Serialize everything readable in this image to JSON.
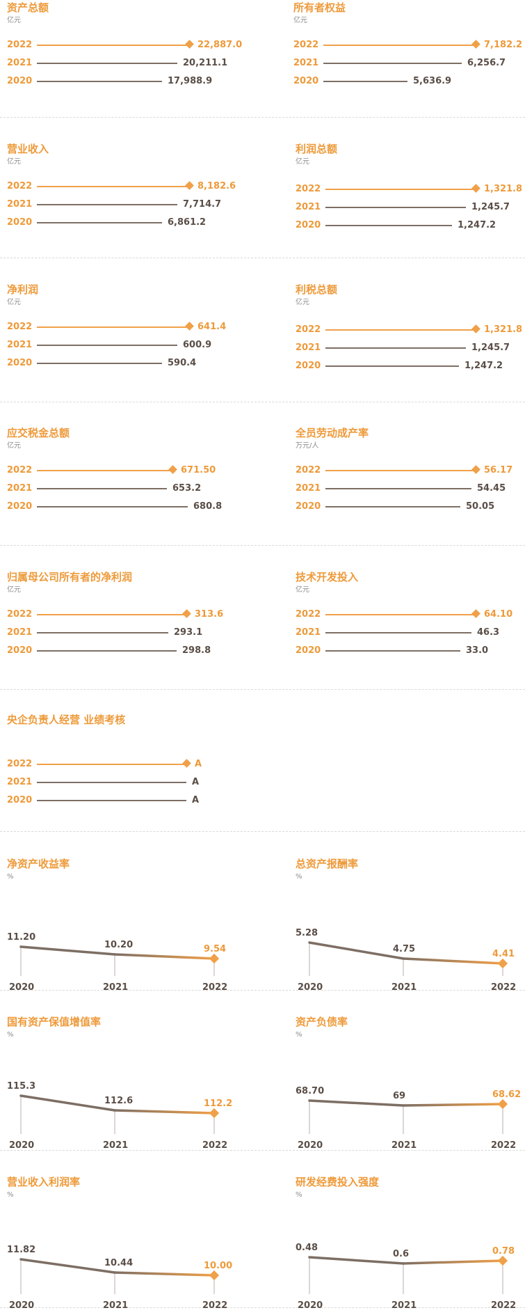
{
  "colors": {
    "accent": "#ee9a3a",
    "line_current": "#f0a048",
    "line_past": "#7d6e64",
    "value_text": "#5a4e47",
    "unit_text": "#8c8c8c"
  },
  "line_cards": [
    {
      "title": "资产总额",
      "unit": "亿元",
      "rows": [
        {
          "year": "2022",
          "value": 22887.0,
          "label": "22,887.0"
        },
        {
          "year": "2021",
          "value": 20211.1,
          "label": "20,211.1"
        },
        {
          "year": "2020",
          "value": 17988.9,
          "label": "17,988.9"
        }
      ]
    },
    {
      "title": "所有者权益",
      "unit": "亿元",
      "rows": [
        {
          "year": "2022",
          "value": 7182.2,
          "label": "7,182.2"
        },
        {
          "year": "2021",
          "value": 6256.7,
          "label": "6,256.7"
        },
        {
          "year": "2020",
          "value": 5636.9,
          "label": "5,636.9"
        }
      ]
    },
    {
      "title": "营业收入",
      "unit": "亿元",
      "rows": [
        {
          "year": "2022",
          "value": 8182.6,
          "label": "8,182.6"
        },
        {
          "year": "2021",
          "value": 7714.7,
          "label": "7,714.7"
        },
        {
          "year": "2020",
          "value": 6861.2,
          "label": "6,861.2"
        }
      ]
    },
    {
      "title": "利润总额",
      "unit": "亿元",
      "rows": [
        {
          "year": "2022",
          "value": 1321.8,
          "label": "1,321.8"
        },
        {
          "year": "2021",
          "value": 1245.7,
          "label": "1,245.7"
        },
        {
          "year": "2020",
          "value": 1247.2,
          "label": "1,247.2"
        }
      ]
    },
    {
      "title": "净利润",
      "unit": "亿元",
      "rows": [
        {
          "year": "2022",
          "value": 641.4,
          "label": "641.4"
        },
        {
          "year": "2021",
          "value": 600.9,
          "label": "600.9"
        },
        {
          "year": "2020",
          "value": 590.4,
          "label": "590.4"
        }
      ]
    },
    {
      "title": "利税总额",
      "unit": "亿元",
      "rows": [
        {
          "year": "2022",
          "value": 1321.8,
          "label": "1,321.8"
        },
        {
          "year": "2021",
          "value": 1245.7,
          "label": "1,245.7"
        },
        {
          "year": "2020",
          "value": 1247.2,
          "label": "1,247.2"
        }
      ]
    },
    {
      "title": "应交税金总额",
      "unit": "亿元",
      "rows": [
        {
          "year": "2022",
          "value": 671.5,
          "label": "671.50"
        },
        {
          "year": "2021",
          "value": 653.2,
          "label": "653.2"
        },
        {
          "year": "2020",
          "value": 680.8,
          "label": "680.8"
        }
      ]
    },
    {
      "title": "全员劳动成产率",
      "unit": "万元/人",
      "rows": [
        {
          "year": "2022",
          "value": 56.17,
          "label": "56.17"
        },
        {
          "year": "2021",
          "value": 54.45,
          "label": "54.45"
        },
        {
          "year": "2020",
          "value": 50.05,
          "label": "50.05"
        }
      ]
    },
    {
      "title": "归属母公司所有者的净利润",
      "unit": "亿元",
      "rows": [
        {
          "year": "2022",
          "value": 313.6,
          "label": "313.6"
        },
        {
          "year": "2021",
          "value": 293.1,
          "label": "293.1"
        },
        {
          "year": "2020",
          "value": 298.8,
          "label": "298.8"
        }
      ]
    },
    {
      "title": "技术开发投入",
      "unit": "亿元",
      "rows": [
        {
          "year": "2022",
          "value": 64.1,
          "label": "64.10"
        },
        {
          "year": "2021",
          "value": 46.3,
          "label": "46.3"
        },
        {
          "year": "2020",
          "value": 33.0,
          "label": "33.0"
        }
      ]
    },
    {
      "title": "央企负责人经营 业绩考核",
      "unit": "",
      "rows": [
        {
          "year": "2022",
          "value": null,
          "label": "A"
        },
        {
          "year": "2021",
          "value": null,
          "label": "A"
        },
        {
          "year": "2020",
          "value": null,
          "label": "A"
        }
      ]
    }
  ],
  "ratio_cards": [
    {
      "title": "净资产收益率",
      "unit": "%",
      "points": [
        {
          "year": "2020",
          "value": 11.2,
          "label": "11.20"
        },
        {
          "year": "2021",
          "value": 10.2,
          "label": "10.20"
        },
        {
          "year": "2022",
          "value": 9.54,
          "label": "9.54"
        }
      ]
    },
    {
      "title": "总资产报酬率",
      "unit": "%",
      "points": [
        {
          "year": "2020",
          "value": 5.28,
          "label": "5.28"
        },
        {
          "year": "2021",
          "value": 4.75,
          "label": "4.75"
        },
        {
          "year": "2022",
          "value": 4.41,
          "label": "4.41"
        }
      ]
    },
    {
      "title": "国有资产保值增值率",
      "unit": "%",
      "points": [
        {
          "year": "2020",
          "value": 115.3,
          "label": "115.3"
        },
        {
          "year": "2021",
          "value": 112.6,
          "label": "112.6"
        },
        {
          "year": "2022",
          "value": 112.2,
          "label": "112.2"
        }
      ]
    },
    {
      "title": "资产负债率",
      "unit": "%",
      "points": [
        {
          "year": "2020",
          "value": 68.7,
          "label": "68.70"
        },
        {
          "year": "2021",
          "value": 69,
          "label": "69"
        },
        {
          "year": "2022",
          "value": 68.62,
          "label": "68.62"
        }
      ]
    },
    {
      "title": "营业收入利润率",
      "unit": "%",
      "points": [
        {
          "year": "2020",
          "value": 11.82,
          "label": "11.82"
        },
        {
          "year": "2021",
          "value": 10.44,
          "label": "10.44"
        },
        {
          "year": "2022",
          "value": 10.0,
          "label": "10.00"
        }
      ]
    },
    {
      "title": "研发经费投入强度",
      "unit": "%",
      "points": [
        {
          "year": "2020",
          "value": 0.48,
          "label": "0.48"
        },
        {
          "year": "2021",
          "value": 0.6,
          "label": "0.6"
        },
        {
          "year": "2022",
          "value": 0.78,
          "label": "0.78"
        }
      ]
    }
  ],
  "chart_data": [
    {
      "type": "bar",
      "title": "资产总额",
      "ylabel": "亿元",
      "categories": [
        "2022",
        "2021",
        "2020"
      ],
      "values": [
        22887.0,
        20211.1,
        17988.9
      ]
    },
    {
      "type": "bar",
      "title": "所有者权益",
      "ylabel": "亿元",
      "categories": [
        "2022",
        "2021",
        "2020"
      ],
      "values": [
        7182.2,
        6256.7,
        5636.9
      ]
    },
    {
      "type": "bar",
      "title": "营业收入",
      "ylabel": "亿元",
      "categories": [
        "2022",
        "2021",
        "2020"
      ],
      "values": [
        8182.6,
        7714.7,
        6861.2
      ]
    },
    {
      "type": "bar",
      "title": "利润总额",
      "ylabel": "亿元",
      "categories": [
        "2022",
        "2021",
        "2020"
      ],
      "values": [
        1321.8,
        1245.7,
        1247.2
      ]
    },
    {
      "type": "bar",
      "title": "净利润",
      "ylabel": "亿元",
      "categories": [
        "2022",
        "2021",
        "2020"
      ],
      "values": [
        641.4,
        600.9,
        590.4
      ]
    },
    {
      "type": "bar",
      "title": "利税总额",
      "ylabel": "亿元",
      "categories": [
        "2022",
        "2021",
        "2020"
      ],
      "values": [
        1321.8,
        1245.7,
        1247.2
      ]
    },
    {
      "type": "bar",
      "title": "应交税金总额",
      "ylabel": "亿元",
      "categories": [
        "2022",
        "2021",
        "2020"
      ],
      "values": [
        671.5,
        653.2,
        680.8
      ]
    },
    {
      "type": "bar",
      "title": "全员劳动成产率",
      "ylabel": "万元/人",
      "categories": [
        "2022",
        "2021",
        "2020"
      ],
      "values": [
        56.17,
        54.45,
        50.05
      ]
    },
    {
      "type": "bar",
      "title": "归属母公司所有者的净利润",
      "ylabel": "亿元",
      "categories": [
        "2022",
        "2021",
        "2020"
      ],
      "values": [
        313.6,
        293.1,
        298.8
      ]
    },
    {
      "type": "bar",
      "title": "技术开发投入",
      "ylabel": "亿元",
      "categories": [
        "2022",
        "2021",
        "2020"
      ],
      "values": [
        64.1,
        46.3,
        33.0
      ]
    },
    {
      "type": "table",
      "title": "央企负责人经营 业绩考核",
      "categories": [
        "2022",
        "2021",
        "2020"
      ],
      "values": [
        "A",
        "A",
        "A"
      ]
    },
    {
      "type": "line",
      "title": "净资产收益率",
      "ylabel": "%",
      "x": [
        "2020",
        "2021",
        "2022"
      ],
      "values": [
        11.2,
        10.2,
        9.54
      ]
    },
    {
      "type": "line",
      "title": "总资产报酬率",
      "ylabel": "%",
      "x": [
        "2020",
        "2021",
        "2022"
      ],
      "values": [
        5.28,
        4.75,
        4.41
      ]
    },
    {
      "type": "line",
      "title": "国有资产保值增值率",
      "ylabel": "%",
      "x": [
        "2020",
        "2021",
        "2022"
      ],
      "values": [
        115.3,
        112.6,
        112.2
      ]
    },
    {
      "type": "line",
      "title": "资产负债率",
      "ylabel": "%",
      "x": [
        "2020",
        "2021",
        "2022"
      ],
      "values": [
        68.7,
        69,
        68.62
      ]
    },
    {
      "type": "line",
      "title": "营业收入利润率",
      "ylabel": "%",
      "x": [
        "2020",
        "2021",
        "2022"
      ],
      "values": [
        11.82,
        10.44,
        10.0
      ]
    },
    {
      "type": "line",
      "title": "研发经费投入强度",
      "ylabel": "%",
      "x": [
        "2020",
        "2021",
        "2022"
      ],
      "values": [
        0.48,
        0.6,
        0.78
      ]
    }
  ]
}
